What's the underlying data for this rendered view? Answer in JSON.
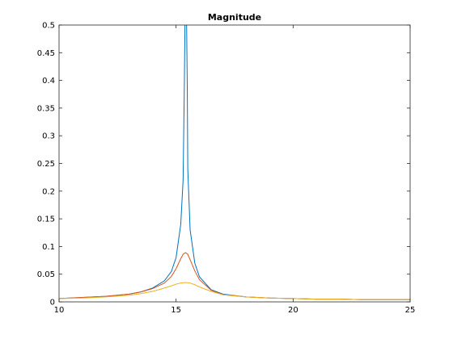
{
  "chart_data": {
    "type": "line",
    "title": "Magnitude",
    "xlabel": "",
    "ylabel": "",
    "xlim": [
      10,
      25
    ],
    "ylim": [
      0,
      0.5
    ],
    "x_ticks": [
      10,
      15,
      20,
      25
    ],
    "y_ticks": [
      0,
      0.05,
      0.1,
      0.15,
      0.2,
      0.25,
      0.3,
      0.35,
      0.4,
      0.45,
      0.5
    ],
    "x_tick_labels": [
      "10",
      "15",
      "20",
      "25"
    ],
    "y_tick_labels": [
      "0",
      "0.05",
      "0.1",
      "0.15",
      "0.2",
      "0.25",
      "0.3",
      "0.35",
      "0.4",
      "0.45",
      "0.5"
    ],
    "grid": false,
    "legend": null,
    "series": [
      {
        "color": "#0072BD",
        "x": [
          10,
          11,
          12,
          13,
          13.5,
          14,
          14.5,
          14.8,
          15.0,
          15.2,
          15.3,
          15.35,
          15.38,
          15.4,
          15.42,
          15.45,
          15.48,
          15.5,
          15.6,
          15.8,
          16.0,
          16.5,
          17,
          18,
          19,
          20,
          21,
          22,
          23,
          25
        ],
        "y": [
          0.006,
          0.008,
          0.01,
          0.014,
          0.018,
          0.025,
          0.038,
          0.055,
          0.08,
          0.14,
          0.22,
          0.38,
          0.5,
          0.5,
          0.5,
          0.5,
          0.38,
          0.24,
          0.13,
          0.07,
          0.045,
          0.022,
          0.014,
          0.009,
          0.007,
          0.006,
          0.005,
          0.005,
          0.004,
          0.004
        ]
      },
      {
        "color": "#D95319",
        "x": [
          10,
          11,
          12,
          13,
          13.5,
          14,
          14.5,
          14.8,
          15.0,
          15.2,
          15.3,
          15.4,
          15.5,
          15.6,
          15.8,
          16.0,
          16.5,
          17,
          18,
          19,
          20,
          21,
          22,
          23,
          25
        ],
        "y": [
          0.006,
          0.008,
          0.01,
          0.014,
          0.018,
          0.024,
          0.034,
          0.046,
          0.06,
          0.078,
          0.086,
          0.089,
          0.086,
          0.076,
          0.056,
          0.04,
          0.021,
          0.013,
          0.009,
          0.007,
          0.006,
          0.005,
          0.005,
          0.004,
          0.004
        ]
      },
      {
        "color": "#EDB120",
        "x": [
          10,
          11,
          12,
          13,
          13.5,
          14,
          14.5,
          14.8,
          15.0,
          15.2,
          15.4,
          15.6,
          15.8,
          16.0,
          16.5,
          17,
          18,
          19,
          20,
          21,
          22,
          23,
          25
        ],
        "y": [
          0.006,
          0.007,
          0.009,
          0.012,
          0.015,
          0.019,
          0.025,
          0.029,
          0.032,
          0.034,
          0.035,
          0.034,
          0.031,
          0.027,
          0.019,
          0.013,
          0.009,
          0.007,
          0.006,
          0.005,
          0.005,
          0.004,
          0.004
        ]
      }
    ]
  }
}
